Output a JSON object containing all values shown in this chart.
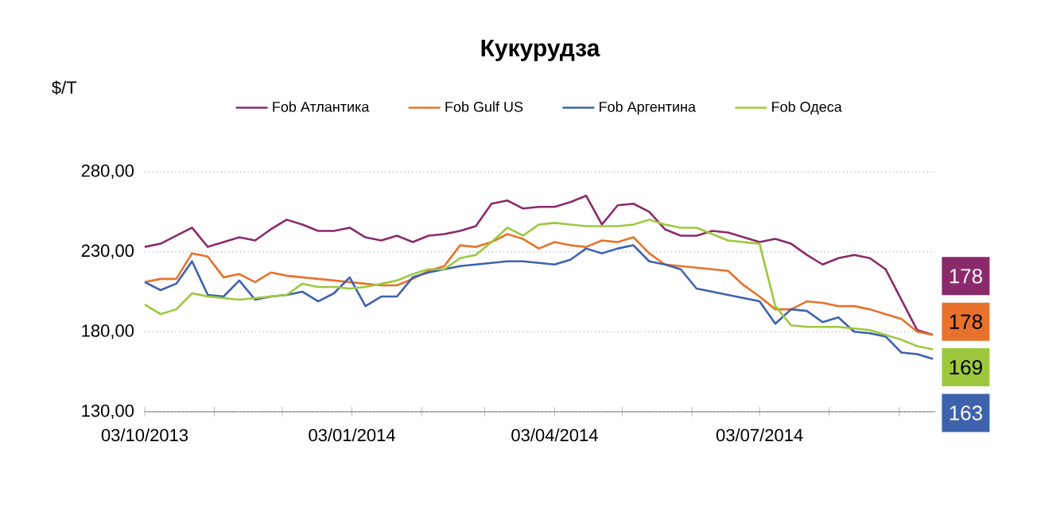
{
  "chart_data": {
    "type": "line",
    "title": "Кукурудза",
    "ylabel": "$/Т",
    "x": [
      "2013-10-03",
      "2013-10-10",
      "2013-10-17",
      "2013-10-24",
      "2013-10-31",
      "2013-11-07",
      "2013-11-14",
      "2013-11-21",
      "2013-11-28",
      "2013-12-05",
      "2013-12-12",
      "2013-12-19",
      "2013-12-26",
      "2014-01-02",
      "2014-01-09",
      "2014-01-16",
      "2014-01-23",
      "2014-01-30",
      "2014-02-06",
      "2014-02-13",
      "2014-02-20",
      "2014-02-27",
      "2014-03-06",
      "2014-03-13",
      "2014-03-20",
      "2014-03-27",
      "2014-04-03",
      "2014-04-10",
      "2014-04-17",
      "2014-04-24",
      "2014-05-01",
      "2014-05-08",
      "2014-05-15",
      "2014-05-22",
      "2014-05-29",
      "2014-06-05",
      "2014-06-12",
      "2014-06-19",
      "2014-06-26",
      "2014-07-03",
      "2014-07-10",
      "2014-07-17",
      "2014-07-24",
      "2014-07-31",
      "2014-08-07",
      "2014-08-14",
      "2014-08-21",
      "2014-08-28",
      "2014-09-04",
      "2014-09-11",
      "2014-09-18"
    ],
    "series": [
      {
        "name": "Fob Атлантика",
        "color": "#8b2a6b",
        "values": [
          233,
          235,
          240,
          245,
          233,
          236,
          239,
          237,
          244,
          250,
          247,
          243,
          243,
          245,
          239,
          237,
          240,
          236,
          240,
          241,
          243,
          246,
          260,
          262,
          257,
          258,
          258,
          261,
          265,
          247,
          259,
          260,
          255,
          244,
          240,
          240,
          243,
          242,
          239,
          236,
          238,
          235,
          228,
          222,
          226,
          228,
          226,
          219,
          200,
          181,
          178
        ],
        "value_labels": [
          null,
          null,
          null,
          null,
          null,
          null,
          null,
          null,
          null,
          null,
          null,
          null,
          null,
          null,
          null,
          null,
          null,
          null,
          null,
          null,
          null,
          null,
          null,
          null,
          null,
          null,
          null,
          null,
          null,
          null,
          null,
          null,
          null,
          null,
          null,
          null,
          null,
          null,
          null,
          null,
          null,
          null,
          null,
          null,
          null,
          null,
          null,
          null,
          null,
          null,
          "178"
        ]
      },
      {
        "name": "Fob Gulf US",
        "color": "#e8722c",
        "values": [
          211,
          213,
          213,
          229,
          227,
          214,
          216,
          211,
          217,
          215,
          214,
          213,
          212,
          211,
          210,
          209,
          209,
          213,
          218,
          221,
          234,
          233,
          236,
          241,
          238,
          232,
          236,
          234,
          233,
          237,
          236,
          239,
          229,
          222,
          221,
          220,
          219,
          218,
          209,
          202,
          194,
          194,
          199,
          198,
          196,
          196,
          194,
          191,
          188,
          180,
          178
        ],
        "value_labels": [
          null,
          null,
          null,
          null,
          null,
          null,
          null,
          null,
          null,
          null,
          null,
          null,
          null,
          null,
          null,
          null,
          null,
          null,
          null,
          null,
          null,
          null,
          null,
          null,
          null,
          null,
          null,
          null,
          null,
          null,
          null,
          null,
          null,
          null,
          null,
          null,
          null,
          null,
          null,
          null,
          null,
          null,
          null,
          null,
          null,
          null,
          null,
          null,
          null,
          null,
          "178"
        ]
      },
      {
        "name": "Fob Аргентина",
        "color": "#3f62ad",
        "values": [
          211,
          206,
          210,
          224,
          203,
          202,
          212,
          200,
          202,
          203,
          205,
          199,
          204,
          214,
          196,
          202,
          202,
          214,
          217,
          219,
          221,
          222,
          223,
          224,
          224,
          223,
          222,
          225,
          232,
          229,
          232,
          234,
          224,
          222,
          219,
          207,
          205,
          203,
          201,
          199,
          185,
          194,
          193,
          186,
          189,
          180,
          179,
          177,
          167,
          166,
          163
        ],
        "value_labels": [
          null,
          null,
          null,
          null,
          null,
          null,
          null,
          null,
          null,
          null,
          null,
          null,
          null,
          null,
          null,
          null,
          null,
          null,
          null,
          null,
          null,
          null,
          null,
          null,
          null,
          null,
          null,
          null,
          null,
          null,
          null,
          null,
          null,
          null,
          null,
          null,
          null,
          null,
          null,
          null,
          null,
          null,
          null,
          null,
          null,
          null,
          null,
          null,
          null,
          null,
          "163"
        ]
      },
      {
        "name": "Fob Одеса",
        "color": "#9dc83e",
        "values": [
          197,
          191,
          194,
          204,
          202,
          201,
          200,
          201,
          202,
          203,
          210,
          208,
          208,
          207,
          208,
          210,
          212,
          216,
          219,
          219,
          226,
          228,
          236,
          245,
          240,
          247,
          248,
          247,
          246,
          246,
          246,
          247,
          250,
          247,
          245,
          245,
          241,
          237,
          236,
          235,
          196,
          184,
          183,
          183,
          183,
          182,
          181,
          178,
          175,
          171,
          169
        ],
        "value_labels": [
          null,
          null,
          null,
          null,
          null,
          null,
          null,
          null,
          null,
          null,
          null,
          null,
          null,
          null,
          null,
          null,
          null,
          null,
          null,
          null,
          null,
          null,
          null,
          null,
          null,
          null,
          null,
          null,
          null,
          null,
          null,
          null,
          null,
          null,
          null,
          null,
          null,
          null,
          null,
          null,
          null,
          null,
          null,
          null,
          null,
          null,
          null,
          null,
          null,
          null,
          "169"
        ]
      }
    ],
    "xlim": [
      "2013-10-03",
      "2014-09-19"
    ],
    "xticks": [
      {
        "value": "2013-10-03",
        "label": "03/10/2013"
      },
      {
        "value": "2013-11-03",
        "label": null
      },
      {
        "value": "2013-12-03",
        "label": null
      },
      {
        "value": "2014-01-03",
        "label": "03/01/2014"
      },
      {
        "value": "2014-02-03",
        "label": null
      },
      {
        "value": "2014-03-03",
        "label": null
      },
      {
        "value": "2014-04-03",
        "label": "03/04/2014"
      },
      {
        "value": "2014-05-03",
        "label": null
      },
      {
        "value": "2014-06-03",
        "label": null
      },
      {
        "value": "2014-07-03",
        "label": "03/07/2014"
      },
      {
        "value": "2014-08-03",
        "label": null
      },
      {
        "value": "2014-09-03",
        "label": null
      }
    ],
    "ylim": [
      130,
      280
    ],
    "yticks": [
      {
        "value": 130,
        "label": "130,00"
      },
      {
        "value": 180,
        "label": "180,00"
      },
      {
        "value": 230,
        "label": "230,00"
      },
      {
        "value": 280,
        "label": "280,00"
      }
    ],
    "grid": "y",
    "legend": "top",
    "line_style": "solid"
  }
}
